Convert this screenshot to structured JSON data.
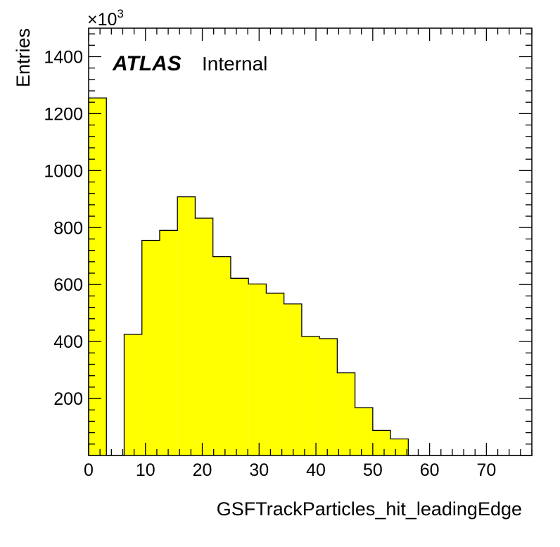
{
  "chart_data": {
    "type": "bar",
    "xlabel": "GSFTrackParticles_hit_leadingEdge",
    "ylabel": "Entries",
    "y_multiplier_base": "×10",
    "y_multiplier_exponent": "3",
    "experiment_label": "ATLAS",
    "status_label": "Internal",
    "xlim": [
      0,
      78
    ],
    "ylim": [
      0,
      1500
    ],
    "x_ticks": [
      0,
      10,
      20,
      30,
      40,
      50,
      60,
      70
    ],
    "x_tick_labels": [
      "0",
      "10",
      "20",
      "30",
      "40",
      "50",
      "60",
      "70"
    ],
    "y_ticks": [
      200,
      400,
      600,
      800,
      1000,
      1200,
      1400
    ],
    "y_tick_labels": [
      "200",
      "400",
      "600",
      "800",
      "1000",
      "1200",
      "1400"
    ],
    "bin_width": 3.125,
    "bin_edges_start": 0,
    "values": [
      1255,
      0,
      425,
      755,
      790,
      908,
      833,
      698,
      622,
      602,
      570,
      532,
      418,
      410,
      290,
      168,
      88,
      58,
      0,
      0,
      0,
      0,
      0,
      0,
      0
    ],
    "fill_color": "#ffff00",
    "line_color": "#000000",
    "legend": "none",
    "grid": false
  }
}
